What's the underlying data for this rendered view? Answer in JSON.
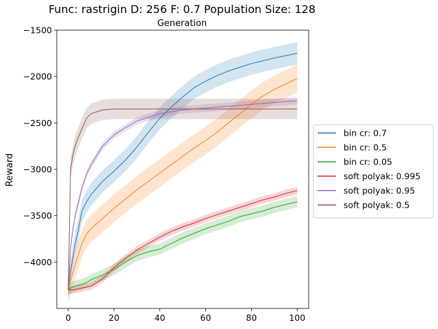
{
  "chart_data": {
    "type": "line",
    "title": "Func: rastrigin D: 256 F: 0.7 Population Size: 128",
    "subtitle": "Generation",
    "xlabel": "",
    "ylabel": "Reward",
    "xlim": [
      -5,
      105
    ],
    "ylim": [
      -4500,
      -1500
    ],
    "xticks": [
      0,
      20,
      40,
      60,
      80,
      100
    ],
    "yticks": [
      -4000,
      -3500,
      -3000,
      -2500,
      -2000,
      -1500
    ],
    "xtick_labels": [
      "0",
      "20",
      "40",
      "60",
      "80",
      "100"
    ],
    "ytick_labels": [
      "−4000",
      "−3500",
      "−3000",
      "−2500",
      "−2000",
      "−1500"
    ],
    "grid": false,
    "legend_position": "outside-right",
    "x": [
      0,
      1,
      2,
      3,
      4,
      6,
      8,
      10,
      15,
      20,
      25,
      30,
      35,
      40,
      45,
      50,
      55,
      60,
      65,
      70,
      75,
      80,
      85,
      90,
      95,
      100
    ],
    "series": [
      {
        "name": "bin cr: 0.7",
        "color": "#1f77b4",
        "values": [
          -4300,
          -4100,
          -3950,
          -3800,
          -3700,
          -3450,
          -3350,
          -3270,
          -3130,
          -3020,
          -2900,
          -2760,
          -2600,
          -2450,
          -2330,
          -2220,
          -2120,
          -2050,
          -1990,
          -1940,
          -1900,
          -1860,
          -1830,
          -1800,
          -1775,
          -1750
        ],
        "band": 120
      },
      {
        "name": "bin cr: 0.5",
        "color": "#ff7f0e",
        "values": [
          -4300,
          -4200,
          -4120,
          -4030,
          -3950,
          -3800,
          -3700,
          -3640,
          -3530,
          -3420,
          -3320,
          -3220,
          -3130,
          -3040,
          -2950,
          -2860,
          -2770,
          -2690,
          -2600,
          -2500,
          -2400,
          -2300,
          -2210,
          -2140,
          -2080,
          -2020
        ],
        "band": 150
      },
      {
        "name": "bin cr: 0.05",
        "color": "#2ca02c",
        "values": [
          -4300,
          -4280,
          -4270,
          -4260,
          -4250,
          -4240,
          -4220,
          -4190,
          -4140,
          -4080,
          -4000,
          -3930,
          -3890,
          -3860,
          -3800,
          -3740,
          -3690,
          -3640,
          -3600,
          -3560,
          -3510,
          -3480,
          -3450,
          -3410,
          -3380,
          -3350
        ],
        "band": 60
      },
      {
        "name": "soft polyak: 0.995",
        "color": "#d62728",
        "values": [
          -4300,
          -4300,
          -4300,
          -4295,
          -4290,
          -4280,
          -4270,
          -4260,
          -4180,
          -4060,
          -3960,
          -3870,
          -3800,
          -3730,
          -3670,
          -3620,
          -3580,
          -3530,
          -3490,
          -3450,
          -3410,
          -3370,
          -3330,
          -3300,
          -3260,
          -3230
        ],
        "band": 40
      },
      {
        "name": "soft polyak: 0.95",
        "color": "#9467bd",
        "values": [
          -4300,
          -3850,
          -3650,
          -3500,
          -3400,
          -3200,
          -3050,
          -2950,
          -2750,
          -2630,
          -2550,
          -2480,
          -2440,
          -2400,
          -2380,
          -2360,
          -2350,
          -2340,
          -2330,
          -2320,
          -2310,
          -2300,
          -2290,
          -2280,
          -2270,
          -2260
        ],
        "band": 40
      },
      {
        "name": "soft polyak: 0.5",
        "color": "#8c564b",
        "values": [
          -4300,
          -3000,
          -2850,
          -2750,
          -2680,
          -2560,
          -2450,
          -2400,
          -2360,
          -2350,
          -2350,
          -2350,
          -2350,
          -2350,
          -2350,
          -2350,
          -2350,
          -2350,
          -2350,
          -2350,
          -2350,
          -2350,
          -2350,
          -2350,
          -2350,
          -2350
        ],
        "band": 110
      }
    ]
  }
}
